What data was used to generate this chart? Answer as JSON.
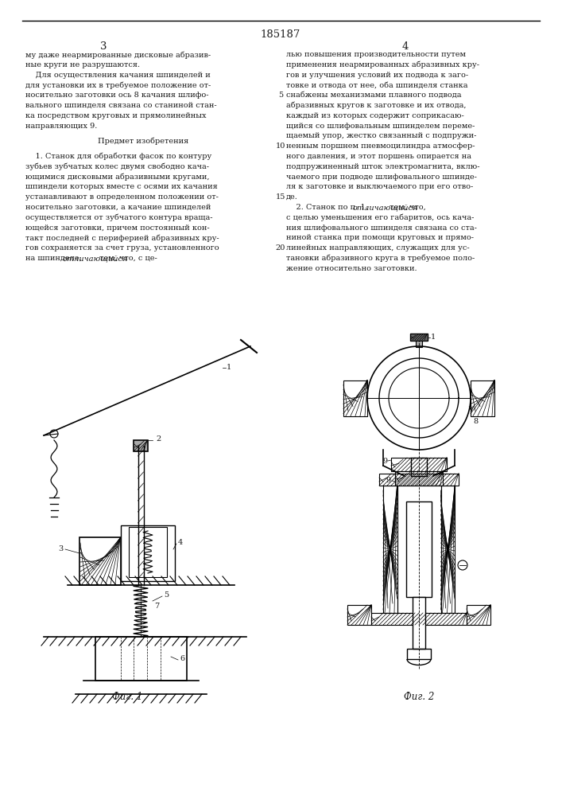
{
  "page_number": "185187",
  "col_left_number": "3",
  "col_right_number": "4",
  "background_color": "#ffffff",
  "text_color": "#1a1a1a",
  "line_color": "#000000",
  "fig_label_left": "Фиг. 1",
  "fig_label_right": "Фиг. 2",
  "col_left_text_lines": [
    "му даже неармированные дисковые абразив-",
    "ные круги не разрушаются.",
    "    Для осуществления качания шпинделей и",
    "для установки их в требуемое положение от-",
    "носительно заготовки ось 8 качания шлифо-",
    "вального шпинделя связана со станиной стан-",
    "ка посредством круговых и прямолинейных",
    "направляющих 9.",
    "",
    "         Предмет изобретения",
    "",
    "    1. Станок для обработки фасок по контуру",
    "зубьев зубчатых колес двумя свободно кача-",
    "ющимися дисковыми абразивными кругами,",
    "шпиндели которых вместе с осями их качания",
    "устанавливают в определенном положении от-",
    "носительно заготовки, а качание шпинделей",
    "осуществляется от зубчатого контура враща-",
    "ющейся заготовки, причем постоянный кон-",
    "такт последней с периферией абразивных кру-",
    "гов сохраняется за счет груза, установленного",
    "на шпинделе, отличающийся тем, что, с це-"
  ],
  "col_right_text_lines": [
    "лью повышения производительности путем",
    "применения неармированных абразивных кру-",
    "гов и улучшения условий их подвода к заго-",
    "товке и отвода от нее, оба шпинделя станка",
    "снабжены механизмами плавного подвода",
    "абразивных кругов к заготовке и их отвода,",
    "каждый из которых содержит соприкасаю-",
    "щийся со шлифовальным шпинделем переме-",
    "щаемый упор, жестко связанный с подпружи-",
    "ненным поршнем пневмоцилиндра атмосфер-",
    "ного давления, и этот поршень опирается на",
    "подпружиненный шток электромагнита, вклю-",
    "чаемого при подводе шлифовального шпинде-",
    "ля к заготовке и выключаемого при его отво-",
    "де.",
    "    2. Станок по п. 1, отличающийся тем, что,",
    "с целью уменьшения его габаритов, ось кача-",
    "ния шлифовального шпинделя связана со ста-",
    "ниной станка при помощи круговых и прямо-",
    "линейных направляющих, служащих для ус-",
    "тановки абразивного круга в требуемое поло-",
    "жение относительно заготовки."
  ],
  "line_numbers": [
    "5",
    "10",
    "15",
    "20"
  ],
  "line_numbers_at_rows": [
    4,
    9,
    14,
    19
  ]
}
